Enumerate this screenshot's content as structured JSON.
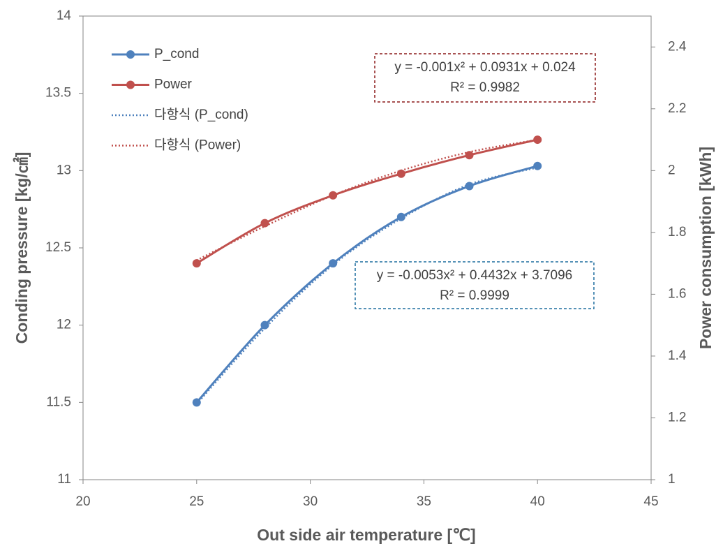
{
  "chart_data": {
    "type": "line",
    "x": [
      25,
      28,
      31,
      34,
      37,
      40
    ],
    "series": [
      {
        "name": "P_cond",
        "color": "#4f81bd",
        "values": [
          11.5,
          12.0,
          12.4,
          12.7,
          12.9,
          13.03
        ],
        "markers": true
      },
      {
        "name": "Power",
        "color": "#c0504d",
        "axis": "y2",
        "values": [
          1.7,
          1.83,
          1.92,
          1.99,
          2.05,
          2.1
        ],
        "markers": true
      },
      {
        "name": "다항식 (P_cond)",
        "color": "#4f81bd",
        "values": [
          11.49,
          11.98,
          12.39,
          12.69,
          12.91,
          13.02
        ],
        "dotted": true
      },
      {
        "name": "다항식 (Power)",
        "color": "#c0504d",
        "axis": "y2",
        "values": [
          1.71,
          1.82,
          1.92,
          2.0,
          2.06,
          2.1
        ],
        "dotted": true
      }
    ],
    "xlim": [
      20,
      45
    ],
    "xticks": [
      20,
      25,
      30,
      35,
      40,
      45
    ],
    "ylim": [
      11,
      14
    ],
    "yticks": [
      11,
      11.5,
      12,
      12.5,
      13,
      13.5,
      14
    ],
    "y2lim": [
      1,
      2.5
    ],
    "y2ticks": [
      1,
      1.2,
      1.4,
      1.6,
      1.8,
      2,
      2.2,
      2.4
    ],
    "xlabel": "Out side air temperature [℃]",
    "ylabel": "Conding pressure [kg/㎠]",
    "y2label": "Power consumption [kWh]",
    "legend": "upper left",
    "annotations": [
      {
        "lines": [
          "y = -0.001x² + 0.0931x + 0.024",
          "R² = 0.9982"
        ],
        "color": "#8b1a1a"
      },
      {
        "lines": [
          "y = -0.0053x² + 0.4432x + 3.7096",
          "R² = 0.9999"
        ],
        "color": "#1f6f9f"
      }
    ]
  }
}
